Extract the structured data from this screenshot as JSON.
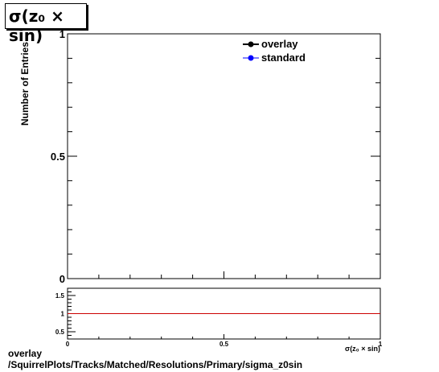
{
  "header": {
    "title": "σ(z₀ × sin)"
  },
  "chart_data": [
    {
      "type": "line",
      "ylabel": "Number of Entries",
      "xlim": [
        0,
        1
      ],
      "ylim": [
        0,
        1
      ],
      "y_ticks": [
        "0",
        "0.5",
        "1"
      ],
      "legend": {
        "placement": "top-right",
        "entries": [
          "overlay",
          "standard"
        ]
      },
      "series": [
        {
          "name": "overlay",
          "color": "#000000",
          "values": []
        },
        {
          "name": "standard",
          "color": "#0000ff",
          "values": []
        }
      ]
    },
    {
      "type": "line",
      "xlabel": "σ(z₀ × sin)",
      "xlim": [
        0,
        1
      ],
      "ylim": [
        0.3,
        1.7
      ],
      "x_ticks": [
        "0",
        "0.5",
        "1"
      ],
      "y_ticks": [
        "0.5",
        "1",
        "1.5"
      ],
      "reference_line": {
        "y": 1,
        "color": "#cc0000"
      }
    }
  ],
  "footer": {
    "line1": "overlay",
    "line2": "/SquirrelPlots/Tracks/Matched/Resolutions/Primary/sigma_z0sin"
  }
}
